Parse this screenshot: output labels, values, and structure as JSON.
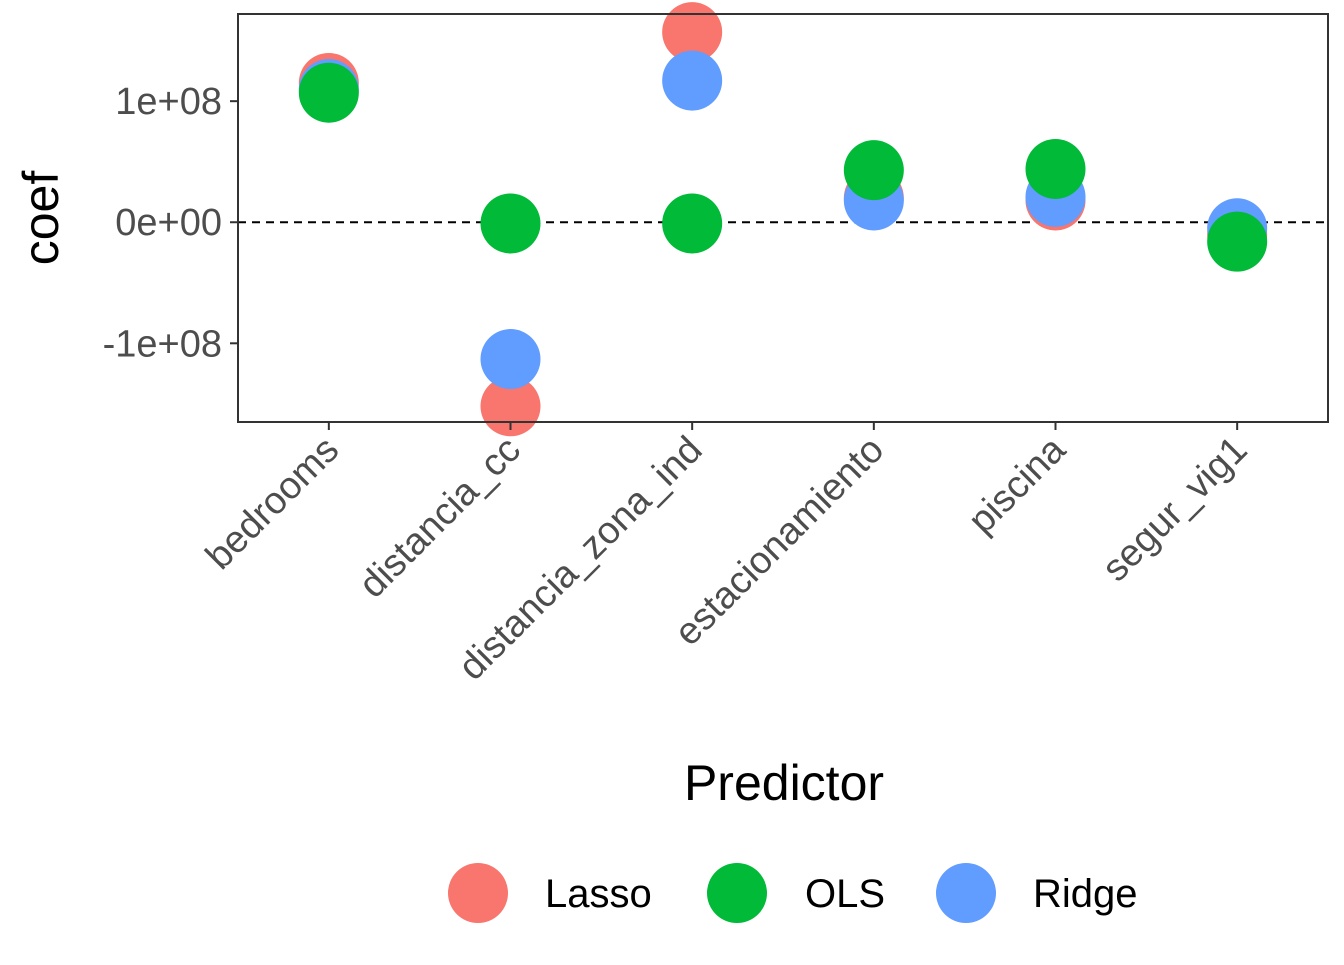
{
  "chart_data": {
    "type": "scatter",
    "title": "",
    "xlabel": "Predictor",
    "ylabel": "coef",
    "categories": [
      "bedrooms",
      "distancia_cc",
      "distancia_zona_ind",
      "estacionamiento",
      "piscina",
      "segur_vig1"
    ],
    "ylim": [
      -165000000,
      172000000
    ],
    "yticks": [
      {
        "value": -100000000,
        "label": "-1e+08"
      },
      {
        "value": 0,
        "label": "0e+00"
      },
      {
        "value": 100000000,
        "label": "1e+08"
      }
    ],
    "reference_line": {
      "y": 0,
      "style": "dashed"
    },
    "grid": false,
    "legend_position": "bottom",
    "series": [
      {
        "name": "Lasso",
        "color": "#F8766D",
        "values": [
          115000000,
          -152000000,
          157000000,
          20000000,
          18000000,
          -10000000
        ]
      },
      {
        "name": "Ridge",
        "color": "#619CFF",
        "values": [
          110000000,
          -113000000,
          117000000,
          18000000,
          21000000,
          -5000000
        ]
      },
      {
        "name": "OLS",
        "color": "#00BA38",
        "values": [
          107000000,
          -1000000,
          -1000000,
          43000000,
          44000000,
          -16000000
        ]
      }
    ],
    "legend": [
      "Lasso",
      "OLS",
      "Ridge"
    ]
  }
}
